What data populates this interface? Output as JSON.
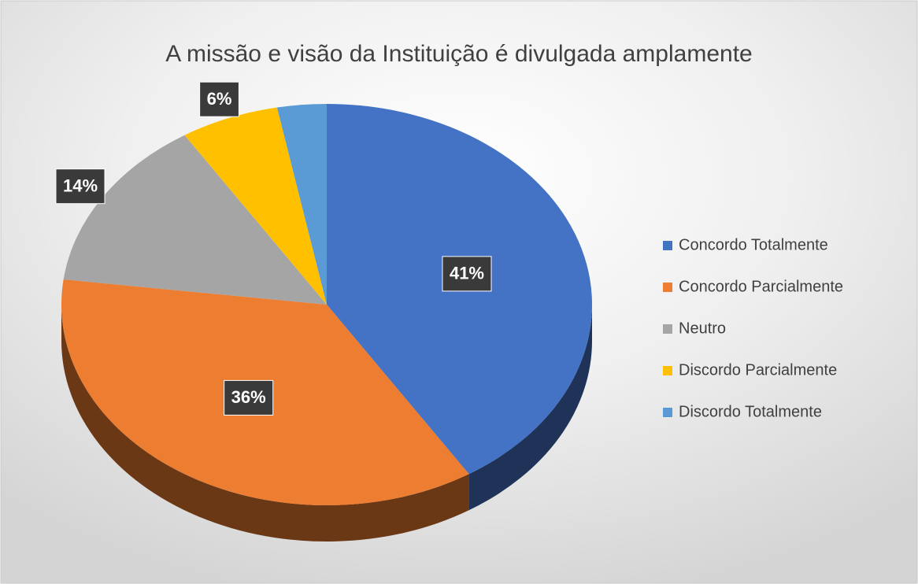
{
  "chart_data": {
    "type": "pie3d",
    "title": "A missão e visão da Instituição é  divulgada amplamente",
    "categories": [
      "Concordo Totalmente",
      "Concordo Parcialmente",
      "Neutro",
      "Discordo Parcialmente",
      "Discordo Totalmente"
    ],
    "values": [
      41,
      36,
      14,
      6,
      3
    ],
    "value_labels": [
      "41%",
      "36%",
      "14%",
      "6%",
      null
    ],
    "colors": [
      "#4472c4",
      "#ed7d31",
      "#a5a5a5",
      "#ffc000",
      "#5b9bd5"
    ],
    "legend": "right"
  }
}
